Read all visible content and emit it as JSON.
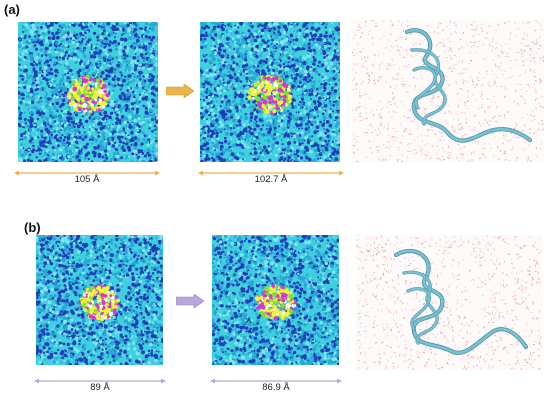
{
  "panels": [
    {
      "label": "(a)",
      "arrow_color": "#e8b64a",
      "dim_color": "#e8b64a",
      "before_size": "105 Å",
      "after_size": "102.7 Å"
    },
    {
      "label": "(b)",
      "arrow_color": "#b9a6dd",
      "dim_color": "#b9a6dd",
      "before_size": "89 Å",
      "after_size": "86.9 Å"
    }
  ],
  "colors": {
    "water_cyan": "#3fd0df",
    "water_blue": "#1f3fb8",
    "protein_yellow": "#f2f23a",
    "protein_magenta": "#d03ad0",
    "protein_green": "#7be03a",
    "cartoon": "#76c3d6",
    "solvent_pink": "#f2b8b8"
  },
  "icons": {
    "arrow": "right-arrow-icon",
    "structure": "protein-cartoon-icon"
  }
}
